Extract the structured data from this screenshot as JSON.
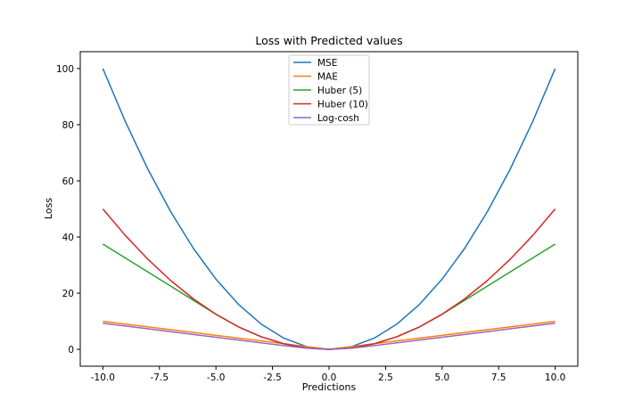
{
  "chart_data": {
    "type": "line",
    "title": "Loss with Predicted values",
    "xlabel": "Predictions",
    "ylabel": "Loss",
    "xlim": [
      -11,
      11
    ],
    "ylim": [
      -6,
      106
    ],
    "x_ticks": [
      -10,
      -7.5,
      -5,
      -2.5,
      0,
      2.5,
      5,
      7.5,
      10
    ],
    "x_tick_labels": [
      "-10.0",
      "-7.5",
      "-5.0",
      "-2.5",
      "0.0",
      "2.5",
      "5.0",
      "7.5",
      "10.0"
    ],
    "y_ticks": [
      0,
      20,
      40,
      60,
      80,
      100
    ],
    "y_tick_labels": [
      "0",
      "20",
      "40",
      "60",
      "80",
      "100"
    ],
    "grid": false,
    "legend_position": "upper center",
    "x": [
      -10,
      -9,
      -8,
      -7,
      -6,
      -5,
      -4,
      -3,
      -2,
      -1,
      0,
      1,
      2,
      3,
      4,
      5,
      6,
      7,
      8,
      9,
      10
    ],
    "series": [
      {
        "name": "MSE",
        "color": "#1f77b4",
        "values": [
          100,
          81,
          64,
          49,
          36,
          25,
          16,
          9,
          4,
          1,
          0,
          1,
          4,
          9,
          16,
          25,
          36,
          49,
          64,
          81,
          100
        ]
      },
      {
        "name": "MAE",
        "color": "#ff7f0e",
        "values": [
          10,
          9,
          8,
          7,
          6,
          5,
          4,
          3,
          2,
          1,
          0,
          1,
          2,
          3,
          4,
          5,
          6,
          7,
          8,
          9,
          10
        ]
      },
      {
        "name": "Huber (5)",
        "color": "#2ca02c",
        "values": [
          37.5,
          32.5,
          27.5,
          22.5,
          17.5,
          12.5,
          8,
          4.5,
          2,
          0.5,
          0,
          0.5,
          2,
          4.5,
          8,
          12.5,
          17.5,
          22.5,
          27.5,
          32.5,
          37.5
        ]
      },
      {
        "name": "Huber (10)",
        "color": "#d62728",
        "values": [
          50,
          40.5,
          32,
          24.5,
          18,
          12.5,
          8,
          4.5,
          2,
          0.5,
          0,
          0.5,
          2,
          4.5,
          8,
          12.5,
          18,
          24.5,
          32,
          40.5,
          50
        ]
      },
      {
        "name": "Log-cosh",
        "color": "#9467bd",
        "values": [
          9.31,
          8.31,
          7.31,
          6.31,
          5.31,
          4.31,
          3.31,
          2.31,
          1.33,
          0.43,
          0,
          0.43,
          1.33,
          2.31,
          3.31,
          4.31,
          5.31,
          6.31,
          7.31,
          8.31,
          9.31
        ]
      }
    ]
  }
}
